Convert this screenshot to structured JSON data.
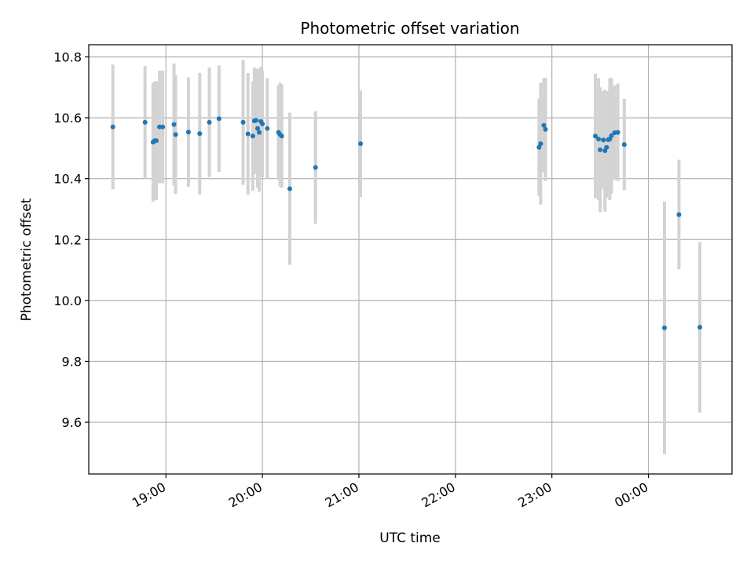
{
  "chart_data": {
    "type": "scatter",
    "title": "Photometric offset variation",
    "xlabel": "UTC time",
    "ylabel": "Photometric offset",
    "xlim": [
      "18:12",
      "00:52"
    ],
    "ylim": [
      9.43,
      10.84
    ],
    "x_ticks": [
      "19:00",
      "20:00",
      "21:00",
      "22:00",
      "23:00",
      "00:00"
    ],
    "y_ticks": [
      "9.6",
      "9.8",
      "10.0",
      "10.2",
      "10.4",
      "10.6",
      "10.8"
    ],
    "grid": true,
    "colors": {
      "point": "#1f77b4",
      "errorbar": "#d3d3d3",
      "grid": "#b0b0b0"
    },
    "series": [
      {
        "x": [
          "18:27",
          "18:47",
          "18:52",
          "18:53",
          "18:54",
          "18:56",
          "18:58",
          "19:05",
          "19:06",
          "19:14",
          "19:21",
          "19:27",
          "19:33",
          "19:48",
          "19:51",
          "19:54",
          "19:55",
          "19:56",
          "19:57",
          "19:58",
          "19:59",
          "20:00",
          "20:03",
          "20:10",
          "20:11",
          "20:12",
          "20:17",
          "20:33",
          "21:01",
          "22:52",
          "22:53",
          "22:55",
          "22:56",
          "23:27",
          "23:29",
          "23:30",
          "23:32",
          "23:33",
          "23:34",
          "23:35",
          "23:36",
          "23:37",
          "23:39",
          "23:41",
          "23:45",
          "00:10",
          "00:19",
          "00:32"
        ],
        "y": [
          10.57,
          10.585,
          10.52,
          10.525,
          10.525,
          10.57,
          10.57,
          10.578,
          10.545,
          10.553,
          10.548,
          10.585,
          10.597,
          10.585,
          10.547,
          10.54,
          10.59,
          10.592,
          10.565,
          10.552,
          10.588,
          10.58,
          10.565,
          10.552,
          10.545,
          10.54,
          10.367,
          10.437,
          10.515,
          10.503,
          10.515,
          10.575,
          10.562,
          10.54,
          10.53,
          10.495,
          10.527,
          10.492,
          10.503,
          10.528,
          10.53,
          10.541,
          10.551,
          10.552,
          10.512,
          9.91,
          10.282,
          9.912
        ],
        "error": [
          0.205,
          0.185,
          0.195,
          0.195,
          0.195,
          0.185,
          0.185,
          0.2,
          0.195,
          0.18,
          0.2,
          0.18,
          0.175,
          0.205,
          0.2,
          0.18,
          0.175,
          0.17,
          0.195,
          0.195,
          0.18,
          0.175,
          0.165,
          0.155,
          0.17,
          0.17,
          0.25,
          0.185,
          0.175,
          0.16,
          0.2,
          0.155,
          0.17,
          0.205,
          0.2,
          0.205,
          0.16,
          0.2,
          0.165,
          0.16,
          0.2,
          0.19,
          0.155,
          0.16,
          0.15,
          0.415,
          0.18,
          0.28
        ]
      }
    ]
  }
}
